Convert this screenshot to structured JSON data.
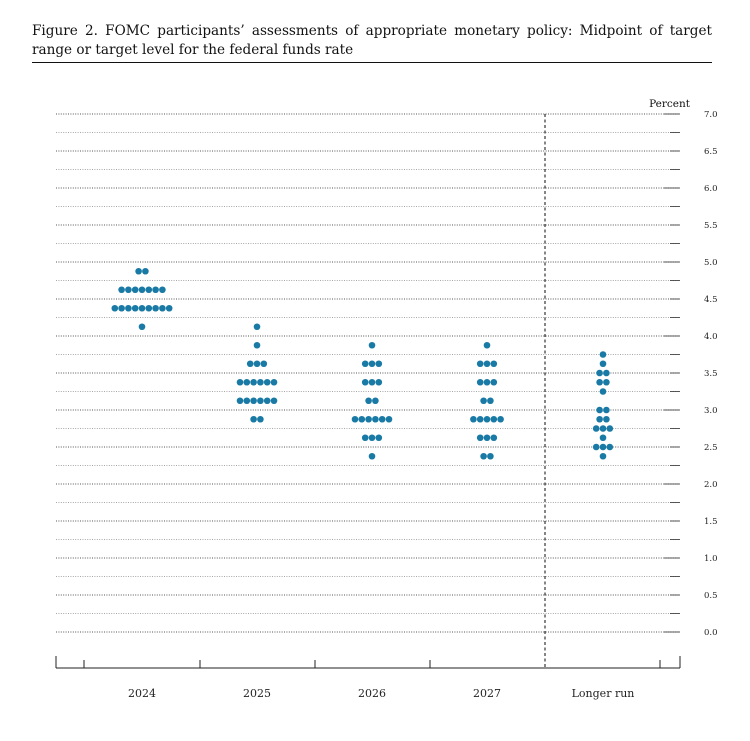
{
  "caption": "Figure 2.  FOMC participants’ assessments of appropriate monetary policy:  Midpoint of target range or target level for the federal funds rate",
  "colors": {
    "dot": "#1a7aa6",
    "text": "#222222",
    "rule": "#111111"
  },
  "chart_data": {
    "type": "scatter",
    "subtype": "dot-plot",
    "categories": [
      "2024",
      "2025",
      "2026",
      "2027",
      "Longer run"
    ],
    "ylabel": "Percent",
    "ylim": [
      0,
      7
    ],
    "yticks": [
      "0.0",
      "0.5",
      "1.0",
      "1.5",
      "2.0",
      "2.5",
      "3.0",
      "3.5",
      "4.0",
      "4.5",
      "5.0",
      "5.5",
      "6.0",
      "6.5",
      "7.0"
    ],
    "grid": "dotted horizontal lines every 0.25 percent",
    "divider": "dashed vertical line between 2027 and Longer run",
    "points": [
      {
        "category": "2024",
        "rows": [
          {
            "value": 4.875,
            "count": 2
          },
          {
            "value": 4.625,
            "count": 7
          },
          {
            "value": 4.375,
            "count": 9
          },
          {
            "value": 4.125,
            "count": 1
          }
        ]
      },
      {
        "category": "2025",
        "rows": [
          {
            "value": 4.125,
            "count": 1
          },
          {
            "value": 3.875,
            "count": 1
          },
          {
            "value": 3.625,
            "count": 3
          },
          {
            "value": 3.375,
            "count": 6
          },
          {
            "value": 3.125,
            "count": 6
          },
          {
            "value": 2.875,
            "count": 2
          }
        ]
      },
      {
        "category": "2026",
        "rows": [
          {
            "value": 3.875,
            "count": 1
          },
          {
            "value": 3.625,
            "count": 3
          },
          {
            "value": 3.375,
            "count": 3
          },
          {
            "value": 3.125,
            "count": 2
          },
          {
            "value": 2.875,
            "count": 6
          },
          {
            "value": 2.625,
            "count": 3
          },
          {
            "value": 2.375,
            "count": 1
          }
        ]
      },
      {
        "category": "2027",
        "rows": [
          {
            "value": 3.875,
            "count": 1
          },
          {
            "value": 3.625,
            "count": 3
          },
          {
            "value": 3.375,
            "count": 3
          },
          {
            "value": 3.125,
            "count": 2
          },
          {
            "value": 2.875,
            "count": 5
          },
          {
            "value": 2.625,
            "count": 3
          },
          {
            "value": 2.375,
            "count": 2
          }
        ]
      },
      {
        "category": "Longer run",
        "rows": [
          {
            "value": 3.75,
            "count": 1
          },
          {
            "value": 3.625,
            "count": 1
          },
          {
            "value": 3.5,
            "count": 2
          },
          {
            "value": 3.375,
            "count": 2
          },
          {
            "value": 3.25,
            "count": 1
          },
          {
            "value": 3.0,
            "count": 2
          },
          {
            "value": 2.875,
            "count": 2
          },
          {
            "value": 2.75,
            "count": 3
          },
          {
            "value": 2.625,
            "count": 1
          },
          {
            "value": 2.5,
            "count": 3
          },
          {
            "value": 2.375,
            "count": 1
          }
        ]
      }
    ]
  }
}
